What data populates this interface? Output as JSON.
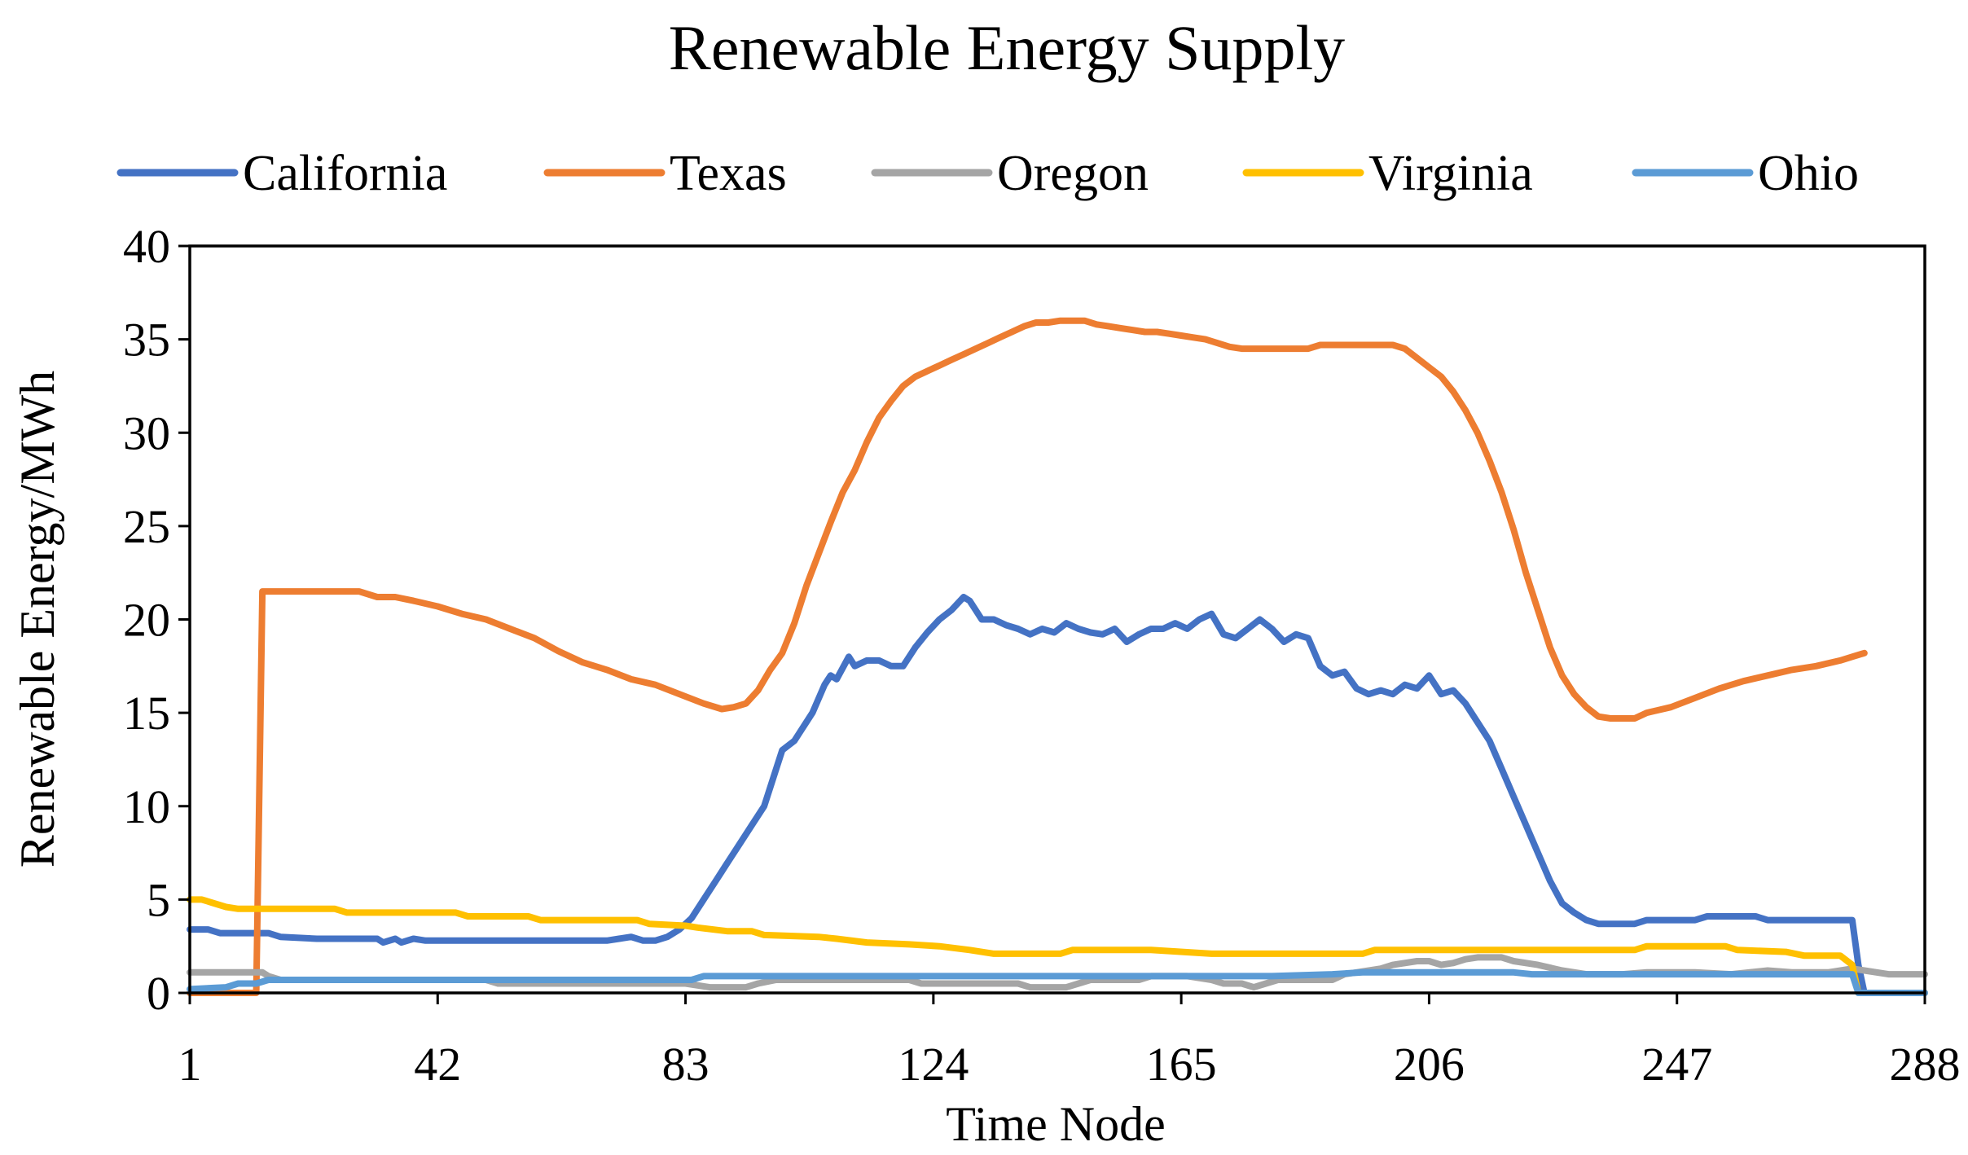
{
  "chart_data": {
    "type": "line",
    "title": "Renewable Energy Supply",
    "xlabel": "Time Node",
    "ylabel": "Renewable Energy/MWh",
    "xlim": [
      1,
      288
    ],
    "ylim": [
      0,
      40
    ],
    "xticks": [
      1,
      42,
      83,
      124,
      165,
      206,
      247,
      288
    ],
    "yticks": [
      0,
      5,
      10,
      15,
      20,
      25,
      30,
      35,
      40
    ],
    "grid": false,
    "legend_position": "top",
    "series": [
      {
        "name": "California",
        "color": "#4472C4",
        "points": [
          [
            1,
            3.4
          ],
          [
            4,
            3.4
          ],
          [
            6,
            3.2
          ],
          [
            14,
            3.2
          ],
          [
            16,
            3.0
          ],
          [
            22,
            2.9
          ],
          [
            32,
            2.9
          ],
          [
            33,
            2.7
          ],
          [
            35,
            2.9
          ],
          [
            36,
            2.7
          ],
          [
            38,
            2.9
          ],
          [
            40,
            2.8
          ],
          [
            60,
            2.8
          ],
          [
            70,
            2.8
          ],
          [
            72,
            2.9
          ],
          [
            74,
            3.0
          ],
          [
            76,
            2.8
          ],
          [
            78,
            2.8
          ],
          [
            80,
            3.0
          ],
          [
            82,
            3.4
          ],
          [
            84,
            4.0
          ],
          [
            86,
            5.0
          ],
          [
            88,
            6.0
          ],
          [
            90,
            7.0
          ],
          [
            92,
            8.0
          ],
          [
            94,
            9.0
          ],
          [
            96,
            10.0
          ],
          [
            98,
            12.0
          ],
          [
            99,
            13.0
          ],
          [
            101,
            13.5
          ],
          [
            102,
            14.0
          ],
          [
            104,
            15.0
          ],
          [
            106,
            16.5
          ],
          [
            107,
            17.0
          ],
          [
            108,
            16.8
          ],
          [
            110,
            18.0
          ],
          [
            111,
            17.5
          ],
          [
            113,
            17.8
          ],
          [
            115,
            17.8
          ],
          [
            117,
            17.5
          ],
          [
            119,
            17.5
          ],
          [
            121,
            18.5
          ],
          [
            123,
            19.3
          ],
          [
            125,
            20.0
          ],
          [
            127,
            20.5
          ],
          [
            129,
            21.2
          ],
          [
            130,
            21.0
          ],
          [
            131,
            20.5
          ],
          [
            132,
            20.0
          ],
          [
            134,
            20.0
          ],
          [
            136,
            19.7
          ],
          [
            138,
            19.5
          ],
          [
            140,
            19.2
          ],
          [
            142,
            19.5
          ],
          [
            144,
            19.3
          ],
          [
            146,
            19.8
          ],
          [
            148,
            19.5
          ],
          [
            150,
            19.3
          ],
          [
            152,
            19.2
          ],
          [
            154,
            19.5
          ],
          [
            156,
            18.8
          ],
          [
            158,
            19.2
          ],
          [
            160,
            19.5
          ],
          [
            162,
            19.5
          ],
          [
            164,
            19.8
          ],
          [
            166,
            19.5
          ],
          [
            168,
            20.0
          ],
          [
            170,
            20.3
          ],
          [
            172,
            19.2
          ],
          [
            174,
            19.0
          ],
          [
            176,
            19.5
          ],
          [
            178,
            20.0
          ],
          [
            180,
            19.5
          ],
          [
            182,
            18.8
          ],
          [
            184,
            19.2
          ],
          [
            186,
            19.0
          ],
          [
            188,
            17.5
          ],
          [
            190,
            17.0
          ],
          [
            192,
            17.2
          ],
          [
            194,
            16.3
          ],
          [
            196,
            16.0
          ],
          [
            198,
            16.2
          ],
          [
            200,
            16.0
          ],
          [
            202,
            16.5
          ],
          [
            204,
            16.3
          ],
          [
            206,
            17.0
          ],
          [
            208,
            16.0
          ],
          [
            210,
            16.2
          ],
          [
            212,
            15.5
          ],
          [
            214,
            14.5
          ],
          [
            216,
            13.5
          ],
          [
            218,
            12.0
          ],
          [
            220,
            10.5
          ],
          [
            222,
            9.0
          ],
          [
            224,
            7.5
          ],
          [
            226,
            6.0
          ],
          [
            228,
            4.8
          ],
          [
            230,
            4.3
          ],
          [
            232,
            3.9
          ],
          [
            234,
            3.7
          ],
          [
            236,
            3.7
          ],
          [
            240,
            3.7
          ],
          [
            242,
            3.9
          ],
          [
            250,
            3.9
          ],
          [
            252,
            4.1
          ],
          [
            260,
            4.1
          ],
          [
            262,
            3.9
          ],
          [
            276,
            3.9
          ],
          [
            277,
            1.5
          ],
          [
            278,
            0.0
          ],
          [
            288,
            0.0
          ]
        ]
      },
      {
        "name": "Texas",
        "color": "#ED7D31",
        "points": [
          [
            1,
            0.0
          ],
          [
            12,
            0.0
          ],
          [
            13,
            21.5
          ],
          [
            14,
            21.5
          ],
          [
            29,
            21.5
          ],
          [
            32,
            21.2
          ],
          [
            35,
            21.2
          ],
          [
            38,
            21.0
          ],
          [
            42,
            20.7
          ],
          [
            46,
            20.3
          ],
          [
            50,
            20.0
          ],
          [
            54,
            19.5
          ],
          [
            58,
            19.0
          ],
          [
            62,
            18.3
          ],
          [
            66,
            17.7
          ],
          [
            70,
            17.3
          ],
          [
            74,
            16.8
          ],
          [
            78,
            16.5
          ],
          [
            82,
            16.0
          ],
          [
            86,
            15.5
          ],
          [
            89,
            15.2
          ],
          [
            91,
            15.3
          ],
          [
            93,
            15.5
          ],
          [
            95,
            16.2
          ],
          [
            97,
            17.3
          ],
          [
            99,
            18.2
          ],
          [
            101,
            19.8
          ],
          [
            103,
            21.8
          ],
          [
            105,
            23.5
          ],
          [
            107,
            25.2
          ],
          [
            109,
            26.8
          ],
          [
            111,
            28.0
          ],
          [
            113,
            29.5
          ],
          [
            115,
            30.8
          ],
          [
            117,
            31.7
          ],
          [
            119,
            32.5
          ],
          [
            121,
            33.0
          ],
          [
            123,
            33.3
          ],
          [
            125,
            33.6
          ],
          [
            127,
            33.9
          ],
          [
            129,
            34.2
          ],
          [
            131,
            34.5
          ],
          [
            133,
            34.8
          ],
          [
            135,
            35.1
          ],
          [
            137,
            35.4
          ],
          [
            139,
            35.7
          ],
          [
            141,
            35.9
          ],
          [
            143,
            35.9
          ],
          [
            145,
            36.0
          ],
          [
            149,
            36.0
          ],
          [
            151,
            35.8
          ],
          [
            153,
            35.7
          ],
          [
            155,
            35.6
          ],
          [
            157,
            35.5
          ],
          [
            159,
            35.4
          ],
          [
            161,
            35.4
          ],
          [
            163,
            35.3
          ],
          [
            165,
            35.2
          ],
          [
            167,
            35.1
          ],
          [
            169,
            35.0
          ],
          [
            171,
            34.8
          ],
          [
            173,
            34.6
          ],
          [
            175,
            34.5
          ],
          [
            186,
            34.5
          ],
          [
            188,
            34.7
          ],
          [
            200,
            34.7
          ],
          [
            202,
            34.5
          ],
          [
            204,
            34.0
          ],
          [
            206,
            33.5
          ],
          [
            208,
            33.0
          ],
          [
            210,
            32.2
          ],
          [
            212,
            31.2
          ],
          [
            214,
            30.0
          ],
          [
            216,
            28.5
          ],
          [
            218,
            26.8
          ],
          [
            220,
            24.8
          ],
          [
            222,
            22.5
          ],
          [
            224,
            20.5
          ],
          [
            226,
            18.5
          ],
          [
            228,
            17.0
          ],
          [
            230,
            16.0
          ],
          [
            232,
            15.3
          ],
          [
            234,
            14.8
          ],
          [
            236,
            14.7
          ],
          [
            240,
            14.7
          ],
          [
            242,
            15.0
          ],
          [
            246,
            15.3
          ],
          [
            250,
            15.8
          ],
          [
            254,
            16.3
          ],
          [
            258,
            16.7
          ],
          [
            262,
            17.0
          ],
          [
            266,
            17.3
          ],
          [
            270,
            17.5
          ],
          [
            274,
            17.8
          ],
          [
            276,
            18.0
          ],
          [
            278,
            18.2
          ]
        ]
      },
      {
        "name": "Oregon",
        "color": "#A5A5A5",
        "points": [
          [
            1,
            1.1
          ],
          [
            13,
            1.1
          ],
          [
            14,
            0.9
          ],
          [
            16,
            0.7
          ],
          [
            50,
            0.7
          ],
          [
            52,
            0.5
          ],
          [
            83,
            0.5
          ],
          [
            87,
            0.3
          ],
          [
            93,
            0.3
          ],
          [
            95,
            0.5
          ],
          [
            98,
            0.7
          ],
          [
            120,
            0.7
          ],
          [
            122,
            0.5
          ],
          [
            138,
            0.5
          ],
          [
            140,
            0.3
          ],
          [
            146,
            0.3
          ],
          [
            148,
            0.5
          ],
          [
            150,
            0.7
          ],
          [
            158,
            0.7
          ],
          [
            160,
            0.9
          ],
          [
            166,
            0.9
          ],
          [
            170,
            0.7
          ],
          [
            172,
            0.5
          ],
          [
            175,
            0.5
          ],
          [
            177,
            0.3
          ],
          [
            179,
            0.5
          ],
          [
            181,
            0.7
          ],
          [
            190,
            0.7
          ],
          [
            192,
            1.0
          ],
          [
            198,
            1.3
          ],
          [
            200,
            1.5
          ],
          [
            204,
            1.7
          ],
          [
            206,
            1.7
          ],
          [
            208,
            1.5
          ],
          [
            210,
            1.6
          ],
          [
            212,
            1.8
          ],
          [
            214,
            1.9
          ],
          [
            218,
            1.9
          ],
          [
            220,
            1.7
          ],
          [
            224,
            1.5
          ],
          [
            228,
            1.2
          ],
          [
            232,
            1.0
          ],
          [
            238,
            1.0
          ],
          [
            242,
            1.1
          ],
          [
            250,
            1.1
          ],
          [
            256,
            1.0
          ],
          [
            262,
            1.2
          ],
          [
            266,
            1.1
          ],
          [
            272,
            1.1
          ],
          [
            276,
            1.3
          ],
          [
            278,
            1.2
          ],
          [
            282,
            1.0
          ],
          [
            288,
            1.0
          ]
        ]
      },
      {
        "name": "Virginia",
        "color": "#FFC000",
        "points": [
          [
            1,
            5.0
          ],
          [
            3,
            5.0
          ],
          [
            5,
            4.8
          ],
          [
            7,
            4.6
          ],
          [
            9,
            4.5
          ],
          [
            25,
            4.5
          ],
          [
            27,
            4.3
          ],
          [
            45,
            4.3
          ],
          [
            47,
            4.1
          ],
          [
            57,
            4.1
          ],
          [
            59,
            3.9
          ],
          [
            75,
            3.9
          ],
          [
            77,
            3.7
          ],
          [
            83,
            3.6
          ],
          [
            85,
            3.5
          ],
          [
            90,
            3.3
          ],
          [
            94,
            3.3
          ],
          [
            96,
            3.1
          ],
          [
            105,
            3.0
          ],
          [
            108,
            2.9
          ],
          [
            113,
            2.7
          ],
          [
            120,
            2.6
          ],
          [
            125,
            2.5
          ],
          [
            130,
            2.3
          ],
          [
            134,
            2.1
          ],
          [
            145,
            2.1
          ],
          [
            147,
            2.3
          ],
          [
            160,
            2.3
          ],
          [
            170,
            2.1
          ],
          [
            195,
            2.1
          ],
          [
            197,
            2.3
          ],
          [
            240,
            2.3
          ],
          [
            242,
            2.5
          ],
          [
            255,
            2.5
          ],
          [
            257,
            2.3
          ],
          [
            265,
            2.2
          ],
          [
            268,
            2.0
          ],
          [
            274,
            2.0
          ],
          [
            276,
            1.5
          ],
          [
            277,
            0.0
          ],
          [
            288,
            0.0
          ]
        ]
      },
      {
        "name": "Ohio",
        "color": "#5B9BD5",
        "points": [
          [
            1,
            0.2
          ],
          [
            7,
            0.3
          ],
          [
            9,
            0.5
          ],
          [
            12,
            0.5
          ],
          [
            14,
            0.7
          ],
          [
            84,
            0.7
          ],
          [
            86,
            0.9
          ],
          [
            100,
            0.9
          ],
          [
            102,
            0.9
          ],
          [
            140,
            0.9
          ],
          [
            145,
            0.9
          ],
          [
            180,
            0.9
          ],
          [
            190,
            1.0
          ],
          [
            195,
            1.1
          ],
          [
            220,
            1.1
          ],
          [
            223,
            1.0
          ],
          [
            276,
            1.0
          ],
          [
            277,
            0.0
          ],
          [
            288,
            0.0
          ]
        ]
      }
    ]
  }
}
